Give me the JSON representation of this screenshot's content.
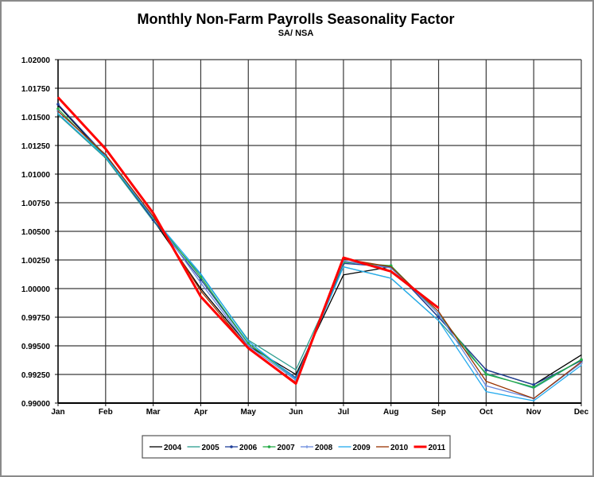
{
  "chart_data": {
    "type": "line",
    "title": "Monthly Non-Farm Payrolls Seasonality Factor",
    "subtitle": "SA/ NSA",
    "xlabel": "",
    "ylabel": "",
    "categories": [
      "Jan",
      "Feb",
      "Mar",
      "Apr",
      "May",
      "Jun",
      "Jul",
      "Aug",
      "Sep",
      "Oct",
      "Nov",
      "Dec"
    ],
    "ylim": [
      0.99,
      1.02
    ],
    "yticks": [
      "0.99000",
      "0.99250",
      "0.99500",
      "0.99750",
      "1.00000",
      "1.00250",
      "1.00500",
      "1.00750",
      "1.01000",
      "1.01250",
      "1.01500",
      "1.01750",
      "1.02000"
    ],
    "grid": true,
    "legend_position": "bottom",
    "series": [
      {
        "name": "2004",
        "color": "#000000",
        "width": 1.3,
        "marker": "none",
        "values": [
          1.016,
          1.0115,
          1.006,
          1.0,
          0.995,
          0.9925,
          1.0012,
          1.0019,
          0.9975,
          0.9929,
          0.9916,
          0.9942
        ]
      },
      {
        "name": "2005",
        "color": "#2a9d8f",
        "width": 1.3,
        "marker": "none",
        "values": [
          1.0152,
          1.0114,
          1.0059,
          1.0012,
          0.9955,
          0.9929,
          1.0019,
          1.0009,
          0.9972,
          0.9926,
          0.9913,
          0.9938
        ]
      },
      {
        "name": "2006",
        "color": "#1f3f99",
        "width": 1.3,
        "marker": "dot",
        "values": [
          1.0161,
          1.0116,
          1.006,
          1.0008,
          0.9952,
          0.9922,
          1.0022,
          1.0019,
          0.9975,
          0.9929,
          0.9916,
          0.9937
        ]
      },
      {
        "name": "2007",
        "color": "#22aa44",
        "width": 1.3,
        "marker": "dot",
        "values": [
          1.0157,
          1.0115,
          1.0062,
          1.001,
          0.9952,
          0.9921,
          1.0023,
          1.002,
          0.9978,
          0.9925,
          0.9914,
          0.9938
        ]
      },
      {
        "name": "2008",
        "color": "#6688dd",
        "width": 1.3,
        "marker": "plus",
        "values": [
          1.0155,
          1.0117,
          1.0063,
          1.0005,
          0.995,
          0.992,
          1.0024,
          1.0018,
          0.9978,
          0.9915,
          0.9904,
          0.9935
        ]
      },
      {
        "name": "2009",
        "color": "#22aaee",
        "width": 1.3,
        "marker": "none",
        "values": [
          1.0153,
          1.0115,
          1.0062,
          1.0013,
          0.9954,
          0.9921,
          1.0019,
          1.0009,
          0.9972,
          0.991,
          0.9902,
          0.9933
        ]
      },
      {
        "name": "2010",
        "color": "#993300",
        "width": 1.3,
        "marker": "none",
        "values": [
          1.0155,
          1.0117,
          1.0063,
          0.9998,
          0.9948,
          0.9918,
          1.0026,
          1.0019,
          0.998,
          0.9919,
          0.9904,
          0.9936
        ]
      },
      {
        "name": "2011",
        "color": "#ff0000",
        "width": 3,
        "marker": "none",
        "values": [
          1.0167,
          1.0122,
          1.0066,
          0.9993,
          0.9948,
          0.9917,
          1.0027,
          1.0015,
          0.9983,
          null,
          null,
          null
        ]
      }
    ]
  }
}
